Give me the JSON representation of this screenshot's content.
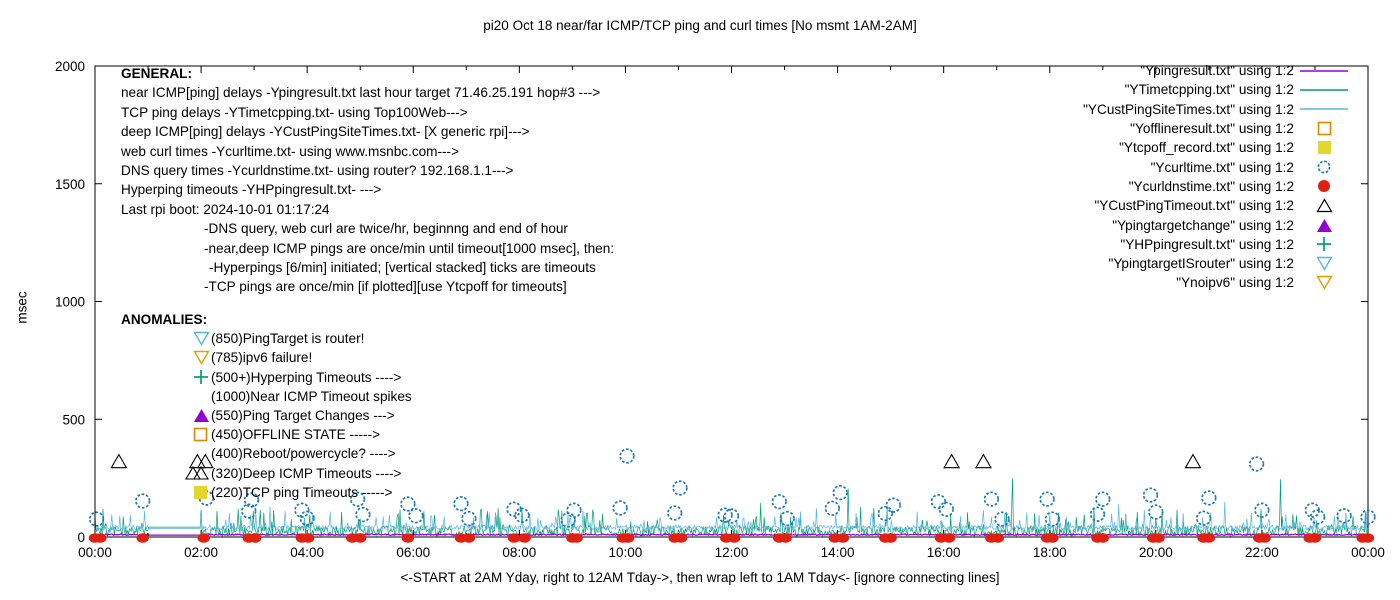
{
  "title": "pi20 Oct 18  near/far ICMP/TCP ping and curl times [No msmt 1AM-2AM]",
  "axes": {
    "ylabel": "msec",
    "xcaption": "<-START at 2AM Yday, right to 12AM Tday->, then wrap left to 1AM Tday<- [ignore connecting lines]"
  },
  "general": {
    "heading": "GENERAL:",
    "lines": [
      {
        "text": "near ICMP[ping] delays -Ypingresult.txt last hour target 71.46.25.191 hop#3 --->"
      },
      {
        "text": "TCP ping delays -YTimetcpping.txt- using Top100Web--->"
      },
      {
        "text": "deep ICMP[ping] delays -YCustPingSiteTimes.txt- [X generic rpi]--->"
      },
      {
        "text": "web curl times -Ycurltime.txt- using www.msnbc.com--->"
      },
      {
        "text": "DNS query times -Ycurldnstime.txt- using router? 192.168.1.1--->"
      },
      {
        "text": "Hyperping timeouts -YHPpingresult.txt- --->"
      },
      {
        "text": "Last rpi boot: 2024-10-01 01:17:24"
      },
      {
        "text": "-DNS query, web curl are twice/hr, beginnng and end of hour"
      },
      {
        "text": "-near,deep ICMP pings are once/min until timeout[1000 msec], then:"
      },
      {
        "text": "-Hyperpings [6/min] initiated; [vertical stacked] ticks are timeouts"
      },
      {
        "text": "-TCP pings are once/min [if plotted][use Ytcpoff for timeouts]"
      }
    ]
  },
  "anomalies": {
    "heading": "ANOMALIES:",
    "rows": [
      {
        "text": "(850)PingTarget is router!",
        "marker": {
          "shape": "triangle-down-open",
          "color": "#56b4e9"
        }
      },
      {
        "text": "(785)ipv6 failure!",
        "marker": {
          "shape": "triangle-down-open",
          "color": "#e0a000"
        }
      },
      {
        "text": "(500+)Hyperping Timeouts ---->",
        "marker": {
          "shape": "plus",
          "color": "#009e73"
        }
      },
      {
        "text": "(1000)Near ICMP Timeout spikes",
        "marker": null
      },
      {
        "text": "(550)Ping Target Changes --->",
        "marker": {
          "shape": "triangle-up-fill",
          "color": "#9400d3"
        }
      },
      {
        "text": "(450)OFFLINE STATE ----->",
        "marker": {
          "shape": "square-open",
          "color": "#dd8800"
        }
      },
      {
        "text": "(400)Reboot/powercycle? ---->",
        "marker": null
      },
      {
        "text": "(320)Deep ICMP Timeouts ---->",
        "marker": {
          "shape": "triangle-up-open-double",
          "color": "#000000"
        }
      },
      {
        "text": "(220)TCP ping Timeouts ----->",
        "marker": {
          "shape": "square-fill",
          "color": "#e3d62c"
        }
      }
    ]
  },
  "legend": {
    "entries": [
      {
        "label": "\"Ypingresult.txt\" using 1:2",
        "marker": {
          "shape": "line",
          "color": "#9400d3"
        }
      },
      {
        "label": "\"YTimetcpping.txt\" using 1:2",
        "marker": {
          "shape": "line",
          "color": "#009e73"
        }
      },
      {
        "label": "\"YCustPingSiteTimes.txt\" using 1:2",
        "marker": {
          "shape": "line",
          "color": "#5ab4e5"
        }
      },
      {
        "label": "\"Yofflineresult.txt\" using 1:2",
        "marker": {
          "shape": "square-open",
          "color": "#dd8800"
        }
      },
      {
        "label": "\"Ytcpoff_record.txt\" using 1:2",
        "marker": {
          "shape": "square-fill",
          "color": "#e3d62c"
        }
      },
      {
        "label": "\"Ycurltime.txt\" using 1:2",
        "marker": {
          "shape": "circle-open",
          "color": "#1878b4"
        }
      },
      {
        "label": "\"Ycurldnstime.txt\" using 1:2",
        "marker": {
          "shape": "circle-fill",
          "color": "#e02010"
        }
      },
      {
        "label": "\"YCustPingTimeout.txt\" using 1:2",
        "marker": {
          "shape": "triangle-up-open",
          "color": "#000000"
        }
      },
      {
        "label": "\"Ypingtargetchange\" using 1:2",
        "marker": {
          "shape": "triangle-up-fill",
          "color": "#9400d3"
        }
      },
      {
        "label": "\"YHPpingresult.txt\" using 1:2",
        "marker": {
          "shape": "plus",
          "color": "#009e73"
        }
      },
      {
        "label": "\"YpingtargetISrouter\" using 1:2",
        "marker": {
          "shape": "triangle-down-open",
          "color": "#56b4e9"
        }
      },
      {
        "label": "\"Ynoipv6\" using 1:2",
        "marker": {
          "shape": "triangle-down-open",
          "color": "#e0a000"
        }
      }
    ]
  },
  "chart_data": {
    "type": "line",
    "title": "pi20 Oct 18  near/far ICMP/TCP ping and curl times [No msmt 1AM-2AM]",
    "xlabel": "<-START at 2AM Yday, right to 12AM Tday->, then wrap left to 1AM Tday<- [ignore connecting lines]",
    "ylabel": "msec",
    "ylim": [
      0,
      2000
    ],
    "xlim_hours": [
      0,
      24
    ],
    "y_ticks": [
      {
        "label": "0",
        "value": 0
      },
      {
        "label": "500",
        "value": 500
      },
      {
        "label": "1000",
        "value": 1000
      },
      {
        "label": "1500",
        "value": 1500
      },
      {
        "label": "2000",
        "value": 2000
      }
    ],
    "x_ticks": [
      {
        "label": "00:00",
        "hour": 0
      },
      {
        "label": "02:00",
        "hour": 2
      },
      {
        "label": "04:00",
        "hour": 4
      },
      {
        "label": "06:00",
        "hour": 6
      },
      {
        "label": "08:00",
        "hour": 8
      },
      {
        "label": "10:00",
        "hour": 10
      },
      {
        "label": "12:00",
        "hour": 12
      },
      {
        "label": "14:00",
        "hour": 14
      },
      {
        "label": "16:00",
        "hour": 16
      },
      {
        "label": "18:00",
        "hour": 18
      },
      {
        "label": "20:00",
        "hour": 20
      },
      {
        "label": "22:00",
        "hour": 22
      },
      {
        "label": "00:00",
        "hour": 24
      }
    ],
    "minor_tick_every_hours": 1,
    "measurement_gap_hours": [
      1.0,
      2.0
    ],
    "noise_series": [
      {
        "name": "YTimetcpping.txt",
        "color": "#009e73",
        "seed": 7,
        "base": 3,
        "jitter": 45,
        "spike_prob": 0.1,
        "spike_extra": 90,
        "gap_value": 42,
        "width": 0.7
      },
      {
        "name": "YCustPingSiteTimes.txt",
        "color": "#5ab4e5",
        "seed": 13,
        "base": 30,
        "jitter": 20,
        "spike_prob": 0.09,
        "spike_extra": 75,
        "gap_value": 36,
        "width": 0.7
      },
      {
        "name": "Ypingresult.txt",
        "color": "#9400d3",
        "seed": 3,
        "base": 7,
        "jitter": 6,
        "spike_prob": 0.0,
        "spike_extra": 0,
        "gap_value": 8,
        "width": 1.2
      }
    ],
    "extra_spikes": {
      "YTimetcpping.txt": [
        [
          2.7,
          120
        ],
        [
          6.2,
          110
        ],
        [
          12.55,
          145
        ],
        [
          14.2,
          205
        ],
        [
          17.3,
          250
        ],
        [
          22.35,
          245
        ]
      ],
      "YCustPingSiteTimes.txt": [
        [
          3.3,
          130
        ],
        [
          9.2,
          112
        ],
        [
          13.6,
          122
        ],
        [
          19.3,
          140
        ],
        [
          21.3,
          150
        ]
      ]
    },
    "curl_times_circles": {
      "name": "Ycurltime.txt",
      "color": "#1878b4",
      "points": [
        [
          0.03,
          76
        ],
        [
          0.9,
          153
        ],
        [
          2.1,
          165
        ],
        [
          2.9,
          110
        ],
        [
          2.95,
          157
        ],
        [
          3.9,
          114
        ],
        [
          4.0,
          80
        ],
        [
          4.95,
          160
        ],
        [
          5.05,
          95
        ],
        [
          5.9,
          140
        ],
        [
          6.05,
          90
        ],
        [
          6.9,
          142
        ],
        [
          7.05,
          78
        ],
        [
          7.9,
          118
        ],
        [
          8.05,
          92
        ],
        [
          8.92,
          72
        ],
        [
          9.03,
          114
        ],
        [
          9.9,
          123
        ],
        [
          10.03,
          344
        ],
        [
          10.93,
          102
        ],
        [
          11.03,
          208
        ],
        [
          11.88,
          93
        ],
        [
          12.0,
          89
        ],
        [
          12.9,
          150
        ],
        [
          13.05,
          78
        ],
        [
          13.9,
          122
        ],
        [
          14.05,
          188
        ],
        [
          14.9,
          100
        ],
        [
          15.05,
          135
        ],
        [
          15.9,
          150
        ],
        [
          16.05,
          118
        ],
        [
          16.9,
          161
        ],
        [
          17.1,
          76
        ],
        [
          17.95,
          161
        ],
        [
          18.05,
          76
        ],
        [
          18.9,
          97
        ],
        [
          19.0,
          161
        ],
        [
          19.9,
          178
        ],
        [
          20.0,
          106
        ],
        [
          20.9,
          80
        ],
        [
          21.0,
          166
        ],
        [
          21.9,
          310
        ],
        [
          22.0,
          114
        ],
        [
          22.95,
          114
        ],
        [
          23.05,
          85
        ],
        [
          23.55,
          90
        ],
        [
          24.0,
          85
        ]
      ]
    },
    "dns_times_dots": {
      "name": "Ycurldnstime.txt",
      "color": "#e02010",
      "value": 0,
      "hours": [
        0.0,
        0.1,
        0.9,
        2.05,
        2.9,
        3.02,
        3.9,
        4.02,
        4.85,
        5.0,
        5.9,
        6.9,
        7.05,
        7.9,
        8.1,
        9.0,
        9.08,
        9.95,
        10.05,
        10.93,
        11.05,
        11.9,
        12.05,
        12.9,
        13.02,
        13.95,
        14.1,
        14.9,
        15.0,
        15.95,
        16.1,
        16.9,
        17.02,
        17.95,
        18.05,
        18.9,
        19.0,
        19.95,
        20.05,
        20.9,
        21.0,
        21.95,
        22.05,
        22.9,
        23.0,
        23.9,
        24.0
      ]
    },
    "deep_icmp_timeout_triangles": {
      "name": "YCustPingTimeout.txt",
      "color": "#000000",
      "value": 320,
      "hours": [
        0.45,
        1.93,
        2.08,
        16.15,
        16.75,
        20.7
      ]
    }
  }
}
